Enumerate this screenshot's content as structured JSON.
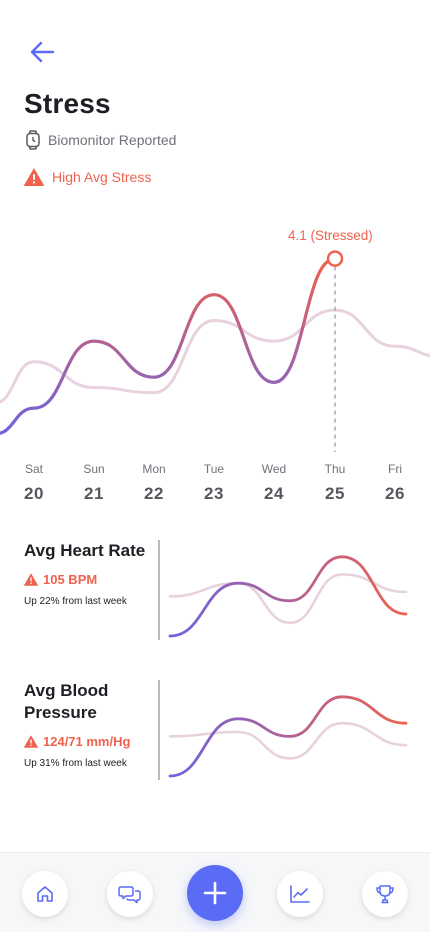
{
  "page": {
    "title": "Stress",
    "source": "Biomonitor Reported",
    "alert": "High Avg Stress"
  },
  "colors": {
    "accent": "#5a6cf5",
    "alert": "#f0624d",
    "trend_start": "#6e63e0",
    "trend_end": "#f0624d",
    "previous": "#e8d2df"
  },
  "chart_data": [
    {
      "type": "line",
      "x": [
        "Sat 20",
        "Sun 21",
        "Mon 22",
        "Tue 23",
        "Wed 24",
        "Thu 25",
        "Fri 26"
      ],
      "series": [
        {
          "values": [
            1.2,
            2.5,
            1.8,
            3.4,
            1.7,
            4.1,
            null
          ]
        },
        {
          "values": [
            2.1,
            1.6,
            1.5,
            2.9,
            2.5,
            3.1,
            2.4
          ]
        }
      ],
      "highlight": {
        "label": "4.1 (Stressed)",
        "index": 5
      },
      "days": [
        {
          "dow": "Sat",
          "num": "20"
        },
        {
          "dow": "Sun",
          "num": "21"
        },
        {
          "dow": "Mon",
          "num": "22"
        },
        {
          "dow": "Tue",
          "num": "23"
        },
        {
          "dow": "Wed",
          "num": "24"
        },
        {
          "dow": "Thu",
          "num": "25"
        },
        {
          "dow": "Fri",
          "num": "26"
        }
      ]
    },
    {
      "type": "line",
      "series": [
        {
          "values": [
            0.0,
            0.6,
            0.4,
            0.9,
            0.25
          ]
        },
        {
          "values": [
            0.45,
            0.6,
            0.15,
            0.7,
            0.5
          ]
        }
      ]
    },
    {
      "type": "line",
      "series": [
        {
          "values": [
            0.0,
            0.65,
            0.45,
            0.9,
            0.6
          ]
        },
        {
          "values": [
            0.45,
            0.5,
            0.2,
            0.6,
            0.35
          ]
        }
      ]
    }
  ],
  "metrics": [
    {
      "title": "Avg Heart Rate",
      "value": "105 BPM",
      "sub": "Up 22% from last week",
      "icon": "warning-icon"
    },
    {
      "title": "Avg Blood Pressure",
      "value": "124/71 mm/Hg",
      "sub": "Up 31% from last week",
      "icon": "warning-icon"
    }
  ],
  "nav": {
    "items": [
      "home-icon",
      "chat-icon",
      "add-icon",
      "chart-icon",
      "trophy-icon"
    ]
  }
}
